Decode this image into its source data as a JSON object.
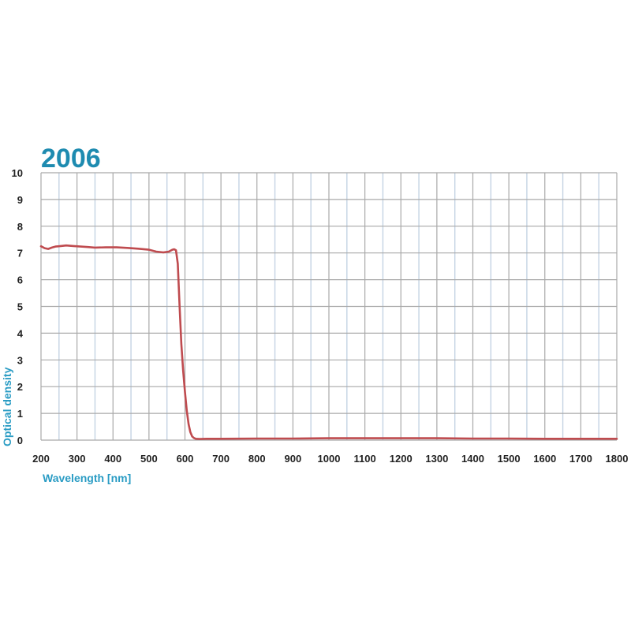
{
  "chart_data": {
    "type": "line",
    "title": "2006",
    "xlabel": "Wavelength [nm]",
    "ylabel": "Optical density",
    "xlim": [
      200,
      1800
    ],
    "ylim": [
      0,
      10
    ],
    "x_ticks": [
      "200",
      "300",
      "400",
      "500",
      "600",
      "700",
      "800",
      "900",
      "1000",
      "1100",
      "1200",
      "1300",
      "1400",
      "1500",
      "1600",
      "1700",
      "1800"
    ],
    "y_ticks": [
      "0",
      "1",
      "2",
      "3",
      "4",
      "5",
      "6",
      "7",
      "8",
      "9",
      "10"
    ],
    "grid": true,
    "series": [
      {
        "x": [
          200,
          210,
          220,
          230,
          240,
          250,
          270,
          290,
          310,
          330,
          350,
          380,
          410,
          440,
          470,
          500,
          520,
          540,
          555,
          565,
          570,
          575,
          580,
          585,
          590,
          595,
          600,
          605,
          610,
          615,
          620,
          625,
          630,
          640,
          660,
          700,
          800,
          900,
          1000,
          1100,
          1200,
          1300,
          1400,
          1500,
          1600,
          1700,
          1800
        ],
        "y": [
          7.25,
          7.18,
          7.15,
          7.2,
          7.24,
          7.25,
          7.28,
          7.26,
          7.24,
          7.22,
          7.2,
          7.21,
          7.21,
          7.19,
          7.16,
          7.12,
          7.05,
          7.02,
          7.05,
          7.12,
          7.14,
          7.1,
          6.6,
          5.0,
          3.6,
          2.6,
          1.8,
          1.1,
          0.6,
          0.3,
          0.14,
          0.08,
          0.05,
          0.04,
          0.05,
          0.05,
          0.06,
          0.06,
          0.07,
          0.07,
          0.07,
          0.07,
          0.06,
          0.06,
          0.05,
          0.05,
          0.05
        ]
      }
    ]
  },
  "colors": {
    "title": "#1e8bb0",
    "axis_label": "#2a9cc4",
    "grid_major": "#a9a9a9",
    "grid_minor": "#c4d3e3",
    "line": "#bf4b4f",
    "tick": "#222222"
  }
}
